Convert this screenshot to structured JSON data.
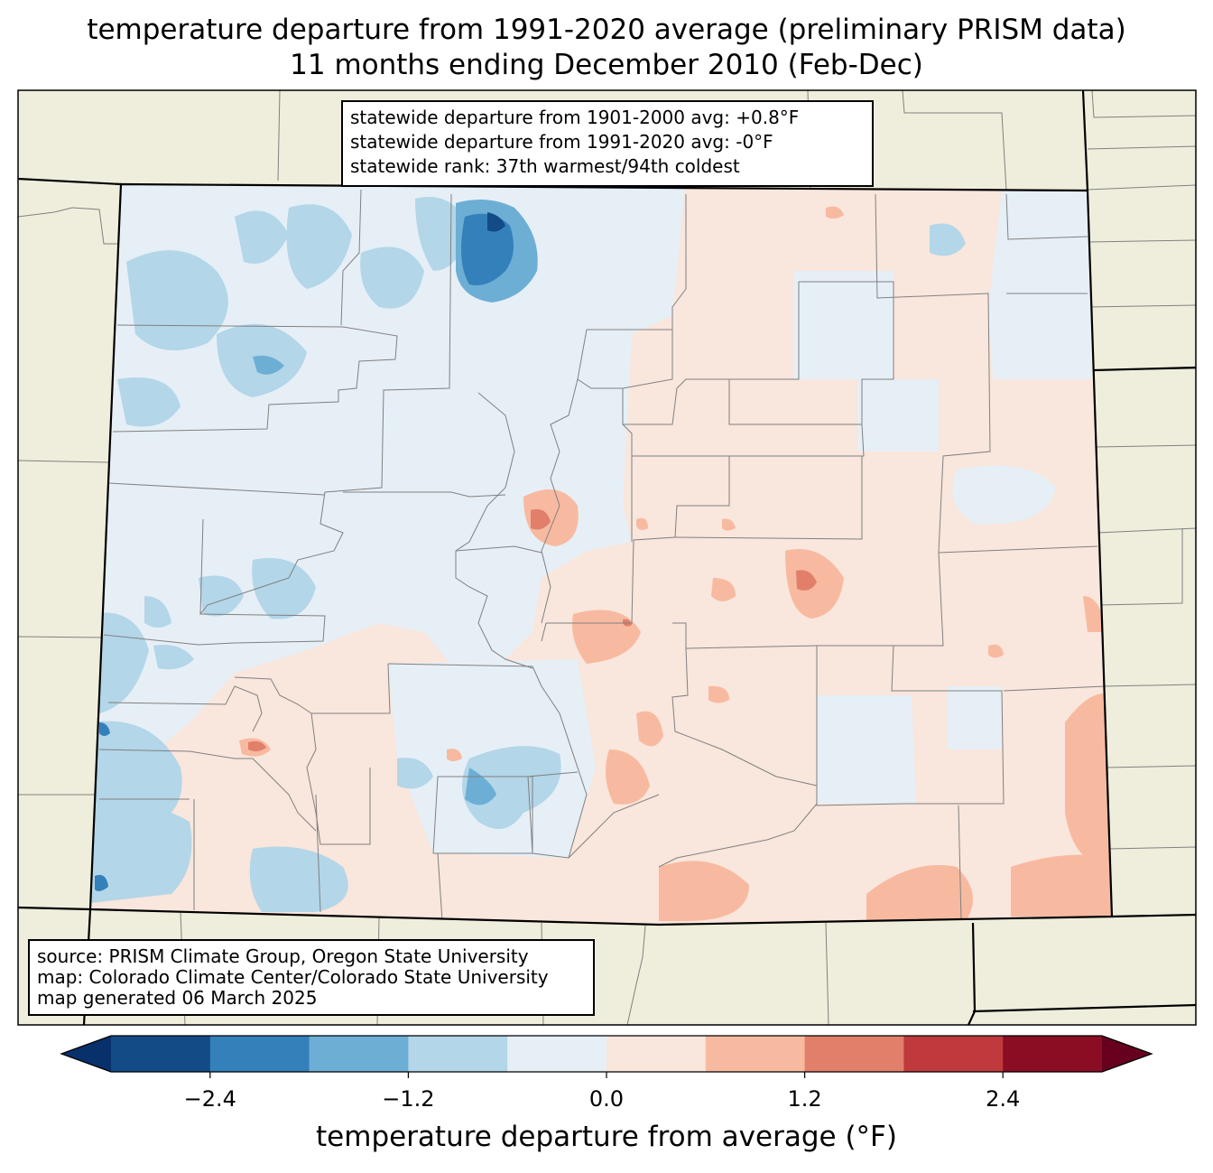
{
  "title": {
    "line1": "temperature departure from 1991-2020 average (preliminary PRISM data)",
    "line2": "11 months ending December 2010 (Feb-Dec)"
  },
  "stats": {
    "line1": "statewide departure from 1901-2000 avg: +0.8°F",
    "line2": "statewide departure from 1991-2020 avg: -0°F",
    "line3": "statewide rank: 37th warmest/94th coldest"
  },
  "source": {
    "line1": "source: PRISM Climate Group, Oregon State University",
    "line2": "map: Colorado Climate Center/Colorado State University",
    "line3": "map generated 06 March 2025"
  },
  "colorbar": {
    "label": "temperature departure from average (°F)",
    "bounds": [
      -3.0,
      -2.4,
      -1.8,
      -1.2,
      -0.6,
      0.0,
      0.6,
      1.2,
      1.8,
      2.4,
      3.0
    ],
    "colors": [
      "#08306b",
      "#134b87",
      "#3480ba",
      "#6daed5",
      "#b3d6e8",
      "#e6eff6",
      "#f9e6dc",
      "#f7baa0",
      "#e27f6a",
      "#c03a3d",
      "#8b0d24",
      "#67001f"
    ],
    "ticks": [
      "−2.4",
      "−1.2",
      "0.0",
      "1.2",
      "2.4"
    ],
    "tick_values": [
      -2.4,
      -1.2,
      0.0,
      1.2,
      2.4
    ]
  },
  "map": {
    "land_color": "#efeedc",
    "state_border_color": "#000000",
    "county_line_color": "#808080"
  }
}
